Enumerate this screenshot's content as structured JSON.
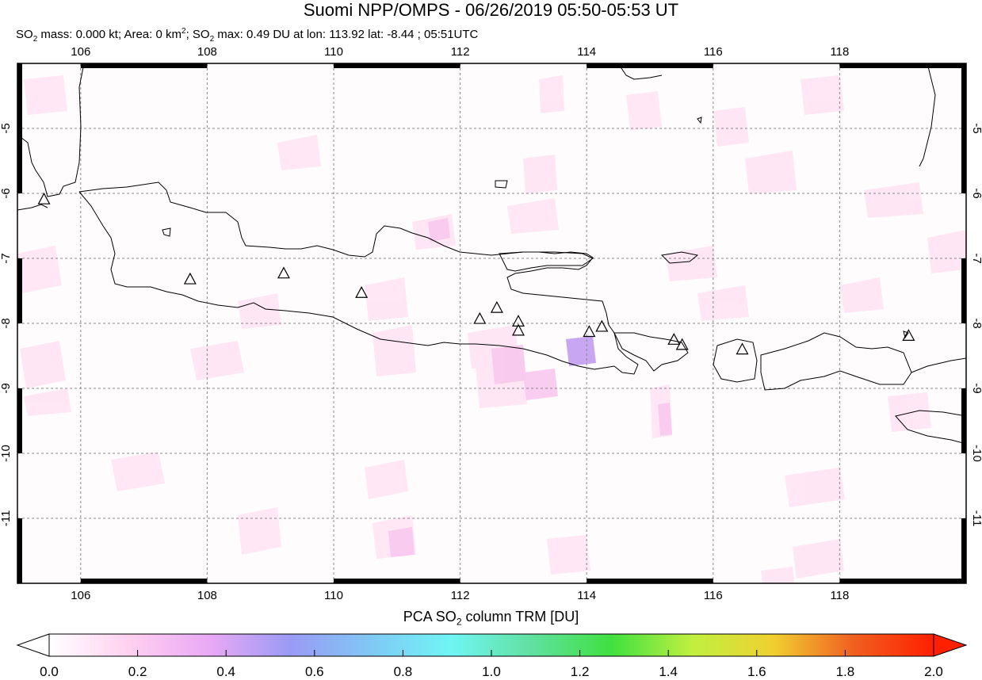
{
  "title": "Suomi NPP/OMPS - 06/26/2019 05:50-05:53 UT",
  "subtitle": {
    "so2_prefix": "SO",
    "mass_text": " mass: 0.000 kt; Area: 0 km",
    "area_unit_sup": "2",
    "max_text": "; SO",
    "max_rest": " max: 0.49 DU at lon: 113.92 lat: -8.44 ; 05:51UTC"
  },
  "map": {
    "lon_range": [
      105.0,
      120.0
    ],
    "lat_range": [
      -12.0,
      -4.0
    ],
    "x_ticks": [
      "106",
      "108",
      "110",
      "112",
      "114",
      "116",
      "118"
    ],
    "y_ticks": [
      "-5",
      "-6",
      "-7",
      "-8",
      "-9",
      "-10",
      "-11"
    ],
    "grid": "dashed",
    "volcanoes": [
      {
        "lon": 105.42,
        "lat": -6.1
      },
      {
        "lon": 107.73,
        "lat": -7.33
      },
      {
        "lon": 109.21,
        "lat": -7.24
      },
      {
        "lon": 110.44,
        "lat": -7.54
      },
      {
        "lon": 112.31,
        "lat": -7.94
      },
      {
        "lon": 112.58,
        "lat": -7.77
      },
      {
        "lon": 112.92,
        "lat": -7.98
      },
      {
        "lon": 112.92,
        "lat": -8.12
      },
      {
        "lon": 114.04,
        "lat": -8.14
      },
      {
        "lon": 114.24,
        "lat": -8.06
      },
      {
        "lon": 115.38,
        "lat": -8.26
      },
      {
        "lon": 115.51,
        "lat": -8.34
      },
      {
        "lon": 116.46,
        "lat": -8.41
      },
      {
        "lon": 119.09,
        "lat": -8.2
      }
    ]
  },
  "colorbar": {
    "title_prefix": "PCA SO",
    "title_sub": "2",
    "title_suffix": " column TRM [DU]",
    "ticks": [
      "0.0",
      "0.2",
      "0.4",
      "0.6",
      "0.8",
      "1.0",
      "1.2",
      "1.4",
      "1.6",
      "1.8",
      "2.0"
    ],
    "range": [
      0.0,
      2.0
    ],
    "colors": [
      "#ffffff",
      "#ffd0f0",
      "#e9a8f5",
      "#9a9af5",
      "#80c8f5",
      "#70f5f5",
      "#60e0a0",
      "#40e040",
      "#c0f040",
      "#f0d030",
      "#f06020",
      "#ff2000"
    ]
  }
}
